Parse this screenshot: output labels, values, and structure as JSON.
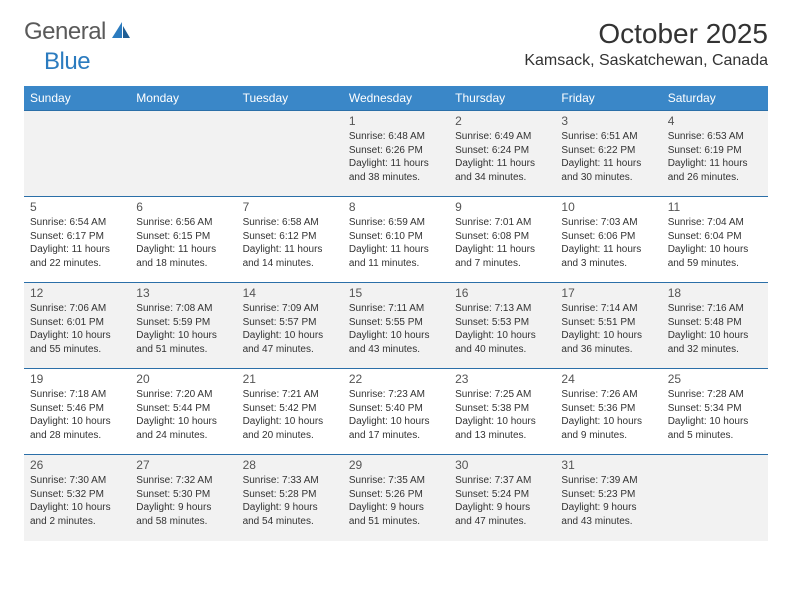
{
  "brand": {
    "word1": "General",
    "word2": "Blue"
  },
  "title": "October 2025",
  "location": "Kamsack, Saskatchewan, Canada",
  "colors": {
    "header_bg": "#3a87c8",
    "header_text": "#ffffff",
    "row_border": "#2b6fa8",
    "odd_row_bg": "#f2f2f2",
    "even_row_bg": "#ffffff",
    "logo_gray": "#5a5a5a",
    "logo_blue": "#2b7bbf",
    "text_color": "#333333"
  },
  "day_headers": [
    "Sunday",
    "Monday",
    "Tuesday",
    "Wednesday",
    "Thursday",
    "Friday",
    "Saturday"
  ],
  "weeks": [
    [
      {
        "day": "",
        "sunrise": "",
        "sunset": "",
        "daylight": ""
      },
      {
        "day": "",
        "sunrise": "",
        "sunset": "",
        "daylight": ""
      },
      {
        "day": "",
        "sunrise": "",
        "sunset": "",
        "daylight": ""
      },
      {
        "day": "1",
        "sunrise": "Sunrise: 6:48 AM",
        "sunset": "Sunset: 6:26 PM",
        "daylight": "Daylight: 11 hours and 38 minutes."
      },
      {
        "day": "2",
        "sunrise": "Sunrise: 6:49 AM",
        "sunset": "Sunset: 6:24 PM",
        "daylight": "Daylight: 11 hours and 34 minutes."
      },
      {
        "day": "3",
        "sunrise": "Sunrise: 6:51 AM",
        "sunset": "Sunset: 6:22 PM",
        "daylight": "Daylight: 11 hours and 30 minutes."
      },
      {
        "day": "4",
        "sunrise": "Sunrise: 6:53 AM",
        "sunset": "Sunset: 6:19 PM",
        "daylight": "Daylight: 11 hours and 26 minutes."
      }
    ],
    [
      {
        "day": "5",
        "sunrise": "Sunrise: 6:54 AM",
        "sunset": "Sunset: 6:17 PM",
        "daylight": "Daylight: 11 hours and 22 minutes."
      },
      {
        "day": "6",
        "sunrise": "Sunrise: 6:56 AM",
        "sunset": "Sunset: 6:15 PM",
        "daylight": "Daylight: 11 hours and 18 minutes."
      },
      {
        "day": "7",
        "sunrise": "Sunrise: 6:58 AM",
        "sunset": "Sunset: 6:12 PM",
        "daylight": "Daylight: 11 hours and 14 minutes."
      },
      {
        "day": "8",
        "sunrise": "Sunrise: 6:59 AM",
        "sunset": "Sunset: 6:10 PM",
        "daylight": "Daylight: 11 hours and 11 minutes."
      },
      {
        "day": "9",
        "sunrise": "Sunrise: 7:01 AM",
        "sunset": "Sunset: 6:08 PM",
        "daylight": "Daylight: 11 hours and 7 minutes."
      },
      {
        "day": "10",
        "sunrise": "Sunrise: 7:03 AM",
        "sunset": "Sunset: 6:06 PM",
        "daylight": "Daylight: 11 hours and 3 minutes."
      },
      {
        "day": "11",
        "sunrise": "Sunrise: 7:04 AM",
        "sunset": "Sunset: 6:04 PM",
        "daylight": "Daylight: 10 hours and 59 minutes."
      }
    ],
    [
      {
        "day": "12",
        "sunrise": "Sunrise: 7:06 AM",
        "sunset": "Sunset: 6:01 PM",
        "daylight": "Daylight: 10 hours and 55 minutes."
      },
      {
        "day": "13",
        "sunrise": "Sunrise: 7:08 AM",
        "sunset": "Sunset: 5:59 PM",
        "daylight": "Daylight: 10 hours and 51 minutes."
      },
      {
        "day": "14",
        "sunrise": "Sunrise: 7:09 AM",
        "sunset": "Sunset: 5:57 PM",
        "daylight": "Daylight: 10 hours and 47 minutes."
      },
      {
        "day": "15",
        "sunrise": "Sunrise: 7:11 AM",
        "sunset": "Sunset: 5:55 PM",
        "daylight": "Daylight: 10 hours and 43 minutes."
      },
      {
        "day": "16",
        "sunrise": "Sunrise: 7:13 AM",
        "sunset": "Sunset: 5:53 PM",
        "daylight": "Daylight: 10 hours and 40 minutes."
      },
      {
        "day": "17",
        "sunrise": "Sunrise: 7:14 AM",
        "sunset": "Sunset: 5:51 PM",
        "daylight": "Daylight: 10 hours and 36 minutes."
      },
      {
        "day": "18",
        "sunrise": "Sunrise: 7:16 AM",
        "sunset": "Sunset: 5:48 PM",
        "daylight": "Daylight: 10 hours and 32 minutes."
      }
    ],
    [
      {
        "day": "19",
        "sunrise": "Sunrise: 7:18 AM",
        "sunset": "Sunset: 5:46 PM",
        "daylight": "Daylight: 10 hours and 28 minutes."
      },
      {
        "day": "20",
        "sunrise": "Sunrise: 7:20 AM",
        "sunset": "Sunset: 5:44 PM",
        "daylight": "Daylight: 10 hours and 24 minutes."
      },
      {
        "day": "21",
        "sunrise": "Sunrise: 7:21 AM",
        "sunset": "Sunset: 5:42 PM",
        "daylight": "Daylight: 10 hours and 20 minutes."
      },
      {
        "day": "22",
        "sunrise": "Sunrise: 7:23 AM",
        "sunset": "Sunset: 5:40 PM",
        "daylight": "Daylight: 10 hours and 17 minutes."
      },
      {
        "day": "23",
        "sunrise": "Sunrise: 7:25 AM",
        "sunset": "Sunset: 5:38 PM",
        "daylight": "Daylight: 10 hours and 13 minutes."
      },
      {
        "day": "24",
        "sunrise": "Sunrise: 7:26 AM",
        "sunset": "Sunset: 5:36 PM",
        "daylight": "Daylight: 10 hours and 9 minutes."
      },
      {
        "day": "25",
        "sunrise": "Sunrise: 7:28 AM",
        "sunset": "Sunset: 5:34 PM",
        "daylight": "Daylight: 10 hours and 5 minutes."
      }
    ],
    [
      {
        "day": "26",
        "sunrise": "Sunrise: 7:30 AM",
        "sunset": "Sunset: 5:32 PM",
        "daylight": "Daylight: 10 hours and 2 minutes."
      },
      {
        "day": "27",
        "sunrise": "Sunrise: 7:32 AM",
        "sunset": "Sunset: 5:30 PM",
        "daylight": "Daylight: 9 hours and 58 minutes."
      },
      {
        "day": "28",
        "sunrise": "Sunrise: 7:33 AM",
        "sunset": "Sunset: 5:28 PM",
        "daylight": "Daylight: 9 hours and 54 minutes."
      },
      {
        "day": "29",
        "sunrise": "Sunrise: 7:35 AM",
        "sunset": "Sunset: 5:26 PM",
        "daylight": "Daylight: 9 hours and 51 minutes."
      },
      {
        "day": "30",
        "sunrise": "Sunrise: 7:37 AM",
        "sunset": "Sunset: 5:24 PM",
        "daylight": "Daylight: 9 hours and 47 minutes."
      },
      {
        "day": "31",
        "sunrise": "Sunrise: 7:39 AM",
        "sunset": "Sunset: 5:23 PM",
        "daylight": "Daylight: 9 hours and 43 minutes."
      },
      {
        "day": "",
        "sunrise": "",
        "sunset": "",
        "daylight": ""
      }
    ]
  ]
}
